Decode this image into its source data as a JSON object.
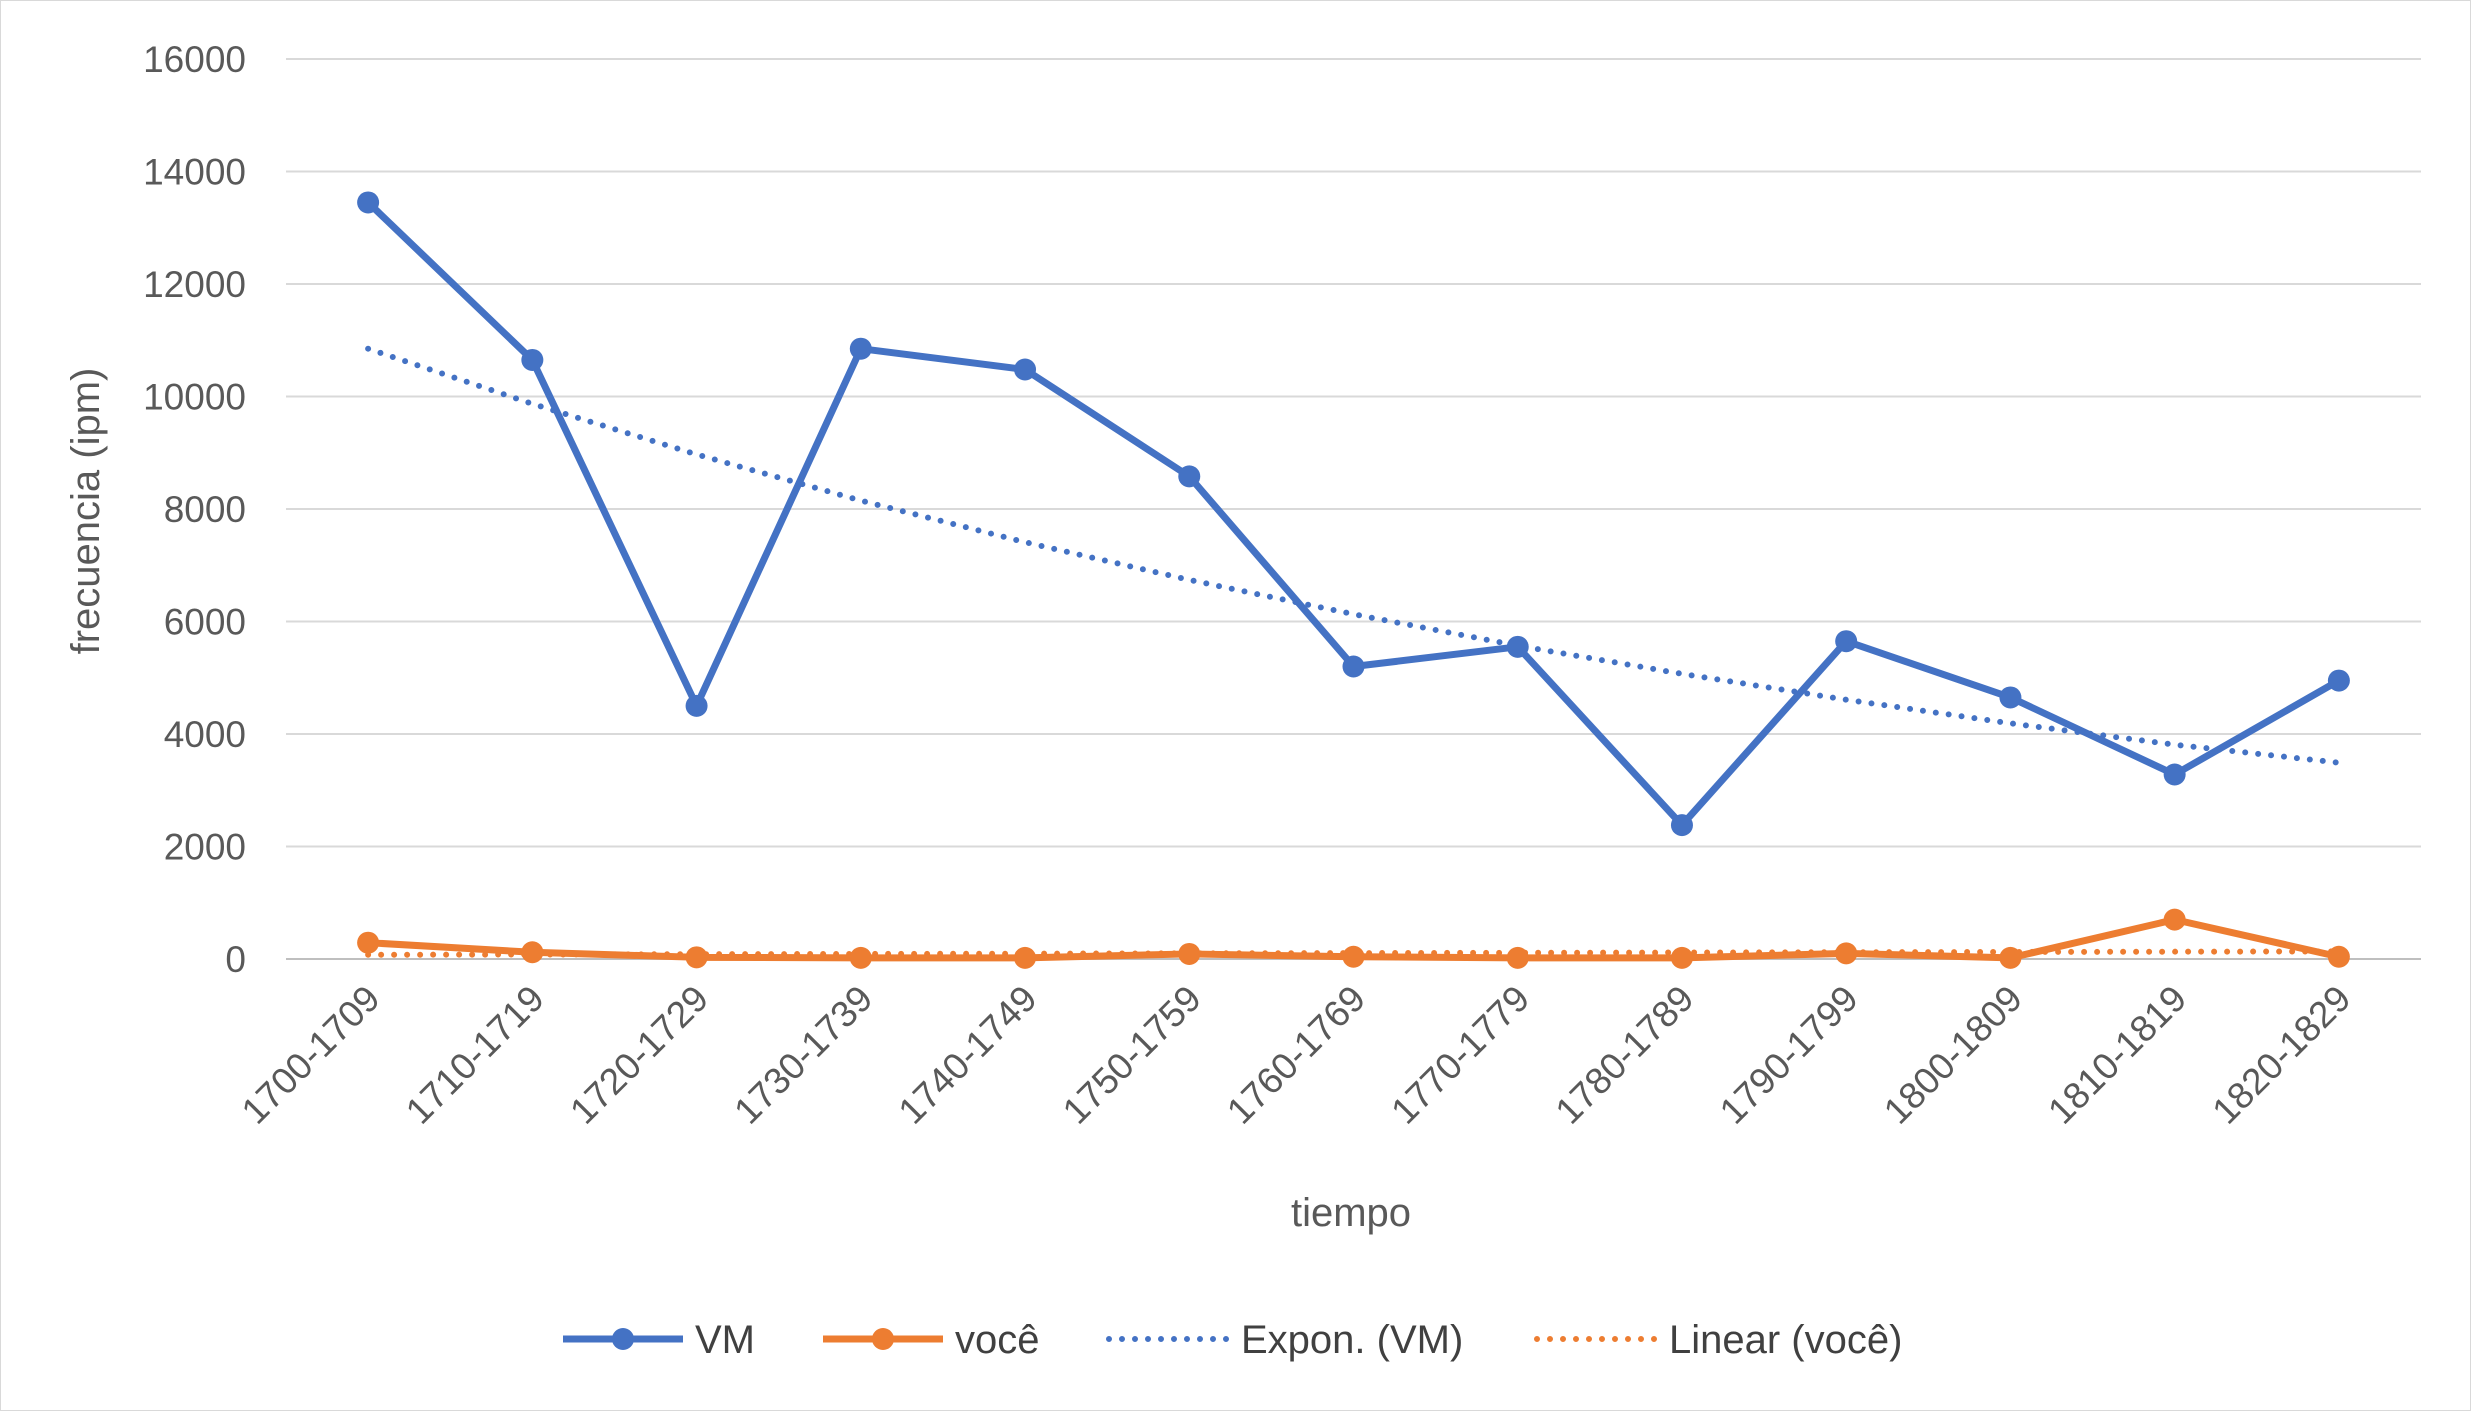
{
  "chart_data": {
    "type": "line",
    "title": "",
    "xlabel": "tiempo",
    "ylabel": "frecuencia (ipm)",
    "ylim": [
      0,
      16000
    ],
    "yticks": [
      0,
      2000,
      4000,
      6000,
      8000,
      10000,
      12000,
      14000,
      16000
    ],
    "ytick_labels": [
      "0",
      "2000",
      "4000",
      "6000",
      "8000",
      "10000",
      "12000",
      "14000",
      "16000"
    ],
    "grid": true,
    "legend_position": "bottom",
    "categories": [
      "1700-1709",
      "1710-1719",
      "1720-1729",
      "1730-1739",
      "1740-1749",
      "1750-1759",
      "1760-1769",
      "1770-1779",
      "1780-1789",
      "1790-1799",
      "1800-1809",
      "1810-1819",
      "1820-1829"
    ],
    "series": [
      {
        "name": "VM",
        "color": "#4472c4",
        "style": "solid-markers",
        "values": [
          13450,
          10650,
          4500,
          10850,
          10480,
          8580,
          5200,
          5550,
          2380,
          5650,
          4650,
          3280,
          4950
        ]
      },
      {
        "name": "você",
        "color": "#ed7d31",
        "style": "solid-markers",
        "values": [
          290,
          120,
          30,
          20,
          20,
          90,
          40,
          20,
          20,
          100,
          20,
          700,
          40
        ]
      },
      {
        "name": "Expon. (VM)",
        "color": "#4472c4",
        "style": "dotted",
        "values": [
          10850,
          9870,
          8970,
          8150,
          7410,
          6740,
          6130,
          5570,
          5070,
          4610,
          4190,
          3810,
          3490
        ]
      },
      {
        "name": "Linear (você)",
        "color": "#ed7d31",
        "style": "dotted",
        "values": [
          75,
          80,
          85,
          90,
          95,
          100,
          105,
          110,
          115,
          120,
          125,
          130,
          135
        ]
      }
    ]
  }
}
